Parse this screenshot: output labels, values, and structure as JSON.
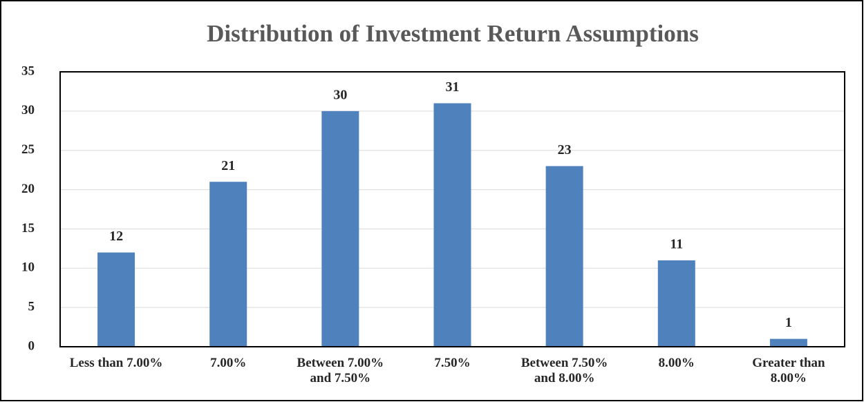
{
  "chart_data": {
    "type": "bar",
    "title": "Distribution of Investment Return Assumptions",
    "categories": [
      "Less than 7.00%",
      "7.00%",
      "Between 7.00% and 7.50%",
      "7.50%",
      "Between 7.50% and 8.00%",
      "8.00%",
      "Greater than 8.00%"
    ],
    "values": [
      12,
      21,
      30,
      31,
      23,
      11,
      1
    ],
    "color": "#4f81bd",
    "ylim": [
      0,
      35
    ],
    "yticks": [
      0,
      5,
      10,
      15,
      20,
      25,
      30,
      35
    ],
    "grid": true
  }
}
